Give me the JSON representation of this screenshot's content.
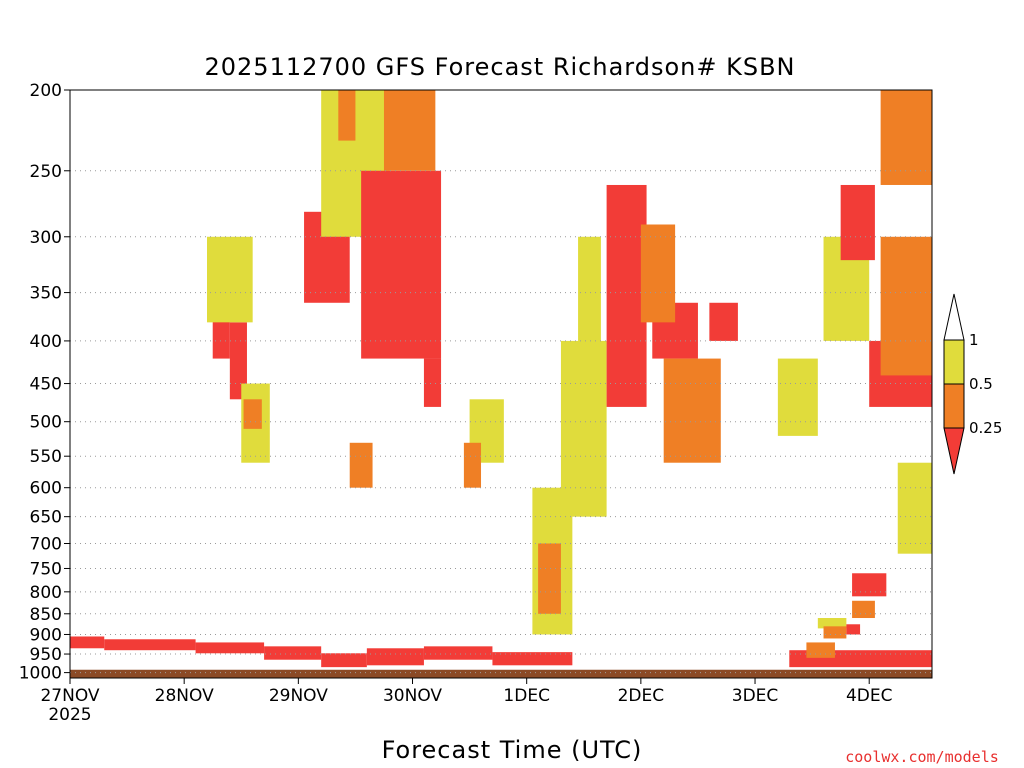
{
  "chart_data": {
    "type": "heatmap",
    "title": "2025112700 GFS Forecast Richardson# KSBN",
    "xlabel": "Forecast Time (UTC)",
    "ylabel": "",
    "x_ticks": [
      "27NOV",
      "28NOV",
      "29NOV",
      "30NOV",
      "1DEC",
      "2DEC",
      "3DEC",
      "4DEC"
    ],
    "x_tick_year": "2025",
    "x_range_days": [
      0,
      7.55
    ],
    "y_ticks": [
      200,
      250,
      300,
      350,
      400,
      450,
      500,
      550,
      600,
      650,
      700,
      750,
      800,
      850,
      900,
      950,
      1000
    ],
    "y_range_hpa": [
      200,
      1015
    ],
    "y_scale": "log-pressure",
    "grid": "dotted horizontal at pressure ticks",
    "surface_top_hpa": 990,
    "colorbar": {
      "ticks": [
        "1",
        "0.5",
        "0.25"
      ],
      "bins": [
        {
          "range": "0.5 - 1",
          "color": "#e0dc3c"
        },
        {
          "range": "0.25 - 0.5",
          "color": "#ef7f25"
        },
        {
          "range": "< 0.25",
          "color": "#f23c37"
        }
      ],
      "over_color": "#ffffff",
      "under_color": "#f23c37"
    },
    "colors": {
      "yellow": "#e0dc3c",
      "orange": "#ef7f25",
      "red": "#f23c37",
      "ground": "#8b4a26",
      "grid": "#9a9a9a"
    },
    "regions": [
      {
        "d": [
          0.0,
          0.3
        ],
        "p": [
          905,
          935
        ],
        "c": "r"
      },
      {
        "d": [
          0.3,
          1.1
        ],
        "p": [
          912,
          940
        ],
        "c": "r"
      },
      {
        "d": [
          1.1,
          1.7
        ],
        "p": [
          920,
          948
        ],
        "c": "r"
      },
      {
        "d": [
          1.7,
          2.2
        ],
        "p": [
          930,
          965
        ],
        "c": "r"
      },
      {
        "d": [
          2.2,
          2.6
        ],
        "p": [
          948,
          985
        ],
        "c": "r"
      },
      {
        "d": [
          2.6,
          3.1
        ],
        "p": [
          935,
          980
        ],
        "c": "r"
      },
      {
        "d": [
          3.1,
          3.7
        ],
        "p": [
          930,
          965
        ],
        "c": "r"
      },
      {
        "d": [
          3.7,
          4.4
        ],
        "p": [
          945,
          980
        ],
        "c": "r"
      },
      {
        "d": [
          6.3,
          7.55
        ],
        "p": [
          940,
          985
        ],
        "c": "r"
      },
      {
        "d": [
          6.55,
          6.8
        ],
        "p": [
          860,
          885
        ],
        "c": "y"
      },
      {
        "d": [
          6.8,
          6.92
        ],
        "p": [
          875,
          900
        ],
        "c": "r"
      },
      {
        "d": [
          1.25,
          1.4
        ],
        "p": [
          350,
          420
        ],
        "c": "r"
      },
      {
        "d": [
          1.4,
          1.55
        ],
        "p": [
          380,
          470
        ],
        "c": "r"
      },
      {
        "d": [
          1.2,
          1.6
        ],
        "p": [
          300,
          380
        ],
        "c": "y"
      },
      {
        "d": [
          1.5,
          1.75
        ],
        "p": [
          450,
          560
        ],
        "c": "y"
      },
      {
        "d": [
          1.52,
          1.68
        ],
        "p": [
          470,
          510
        ],
        "c": "o"
      },
      {
        "d": [
          2.05,
          2.45
        ],
        "p": [
          280,
          360
        ],
        "c": "r"
      },
      {
        "d": [
          2.2,
          2.8
        ],
        "p": [
          200,
          300
        ],
        "c": "y"
      },
      {
        "d": [
          2.35,
          2.5
        ],
        "p": [
          200,
          230
        ],
        "c": "o"
      },
      {
        "d": [
          2.45,
          2.65
        ],
        "p": [
          530,
          600
        ],
        "c": "o"
      },
      {
        "d": [
          2.55,
          3.25
        ],
        "p": [
          250,
          420
        ],
        "c": "r"
      },
      {
        "d": [
          2.75,
          3.2
        ],
        "p": [
          200,
          250
        ],
        "c": "o"
      },
      {
        "d": [
          3.1,
          3.25
        ],
        "p": [
          420,
          480
        ],
        "c": "r"
      },
      {
        "d": [
          3.5,
          3.8
        ],
        "p": [
          470,
          560
        ],
        "c": "y"
      },
      {
        "d": [
          3.45,
          3.6
        ],
        "p": [
          530,
          600
        ],
        "c": "o"
      },
      {
        "d": [
          4.05,
          4.4
        ],
        "p": [
          600,
          900
        ],
        "c": "y"
      },
      {
        "d": [
          4.1,
          4.3
        ],
        "p": [
          700,
          850
        ],
        "c": "o"
      },
      {
        "d": [
          4.3,
          4.7
        ],
        "p": [
          400,
          650
        ],
        "c": "y"
      },
      {
        "d": [
          4.45,
          4.65
        ],
        "p": [
          300,
          420
        ],
        "c": "y"
      },
      {
        "d": [
          4.7,
          5.05
        ],
        "p": [
          260,
          480
        ],
        "c": "r"
      },
      {
        "d": [
          5.1,
          5.5
        ],
        "p": [
          360,
          420
        ],
        "c": "r"
      },
      {
        "d": [
          5.2,
          5.7
        ],
        "p": [
          420,
          560
        ],
        "c": "o"
      },
      {
        "d": [
          5.0,
          5.3
        ],
        "p": [
          290,
          380
        ],
        "c": "o"
      },
      {
        "d": [
          5.6,
          5.85
        ],
        "p": [
          360,
          400
        ],
        "c": "r"
      },
      {
        "d": [
          6.45,
          6.7
        ],
        "p": [
          920,
          960
        ],
        "c": "o"
      },
      {
        "d": [
          6.6,
          6.8
        ],
        "p": [
          880,
          910
        ],
        "c": "o"
      },
      {
        "d": [
          6.2,
          6.55
        ],
        "p": [
          420,
          520
        ],
        "c": "y"
      },
      {
        "d": [
          6.6,
          7.0
        ],
        "p": [
          300,
          400
        ],
        "c": "y"
      },
      {
        "d": [
          6.75,
          7.05
        ],
        "p": [
          260,
          320
        ],
        "c": "r"
      },
      {
        "d": [
          7.0,
          7.55
        ],
        "p": [
          400,
          480
        ],
        "c": "r"
      },
      {
        "d": [
          7.1,
          7.55
        ],
        "p": [
          200,
          260
        ],
        "c": "o"
      },
      {
        "d": [
          7.1,
          7.55
        ],
        "p": [
          300,
          440
        ],
        "c": "o"
      },
      {
        "d": [
          6.85,
          7.15
        ],
        "p": [
          760,
          810
        ],
        "c": "r"
      },
      {
        "d": [
          6.85,
          7.05
        ],
        "p": [
          820,
          860
        ],
        "c": "o"
      },
      {
        "d": [
          7.25,
          7.55
        ],
        "p": [
          560,
          720
        ],
        "c": "y"
      }
    ]
  }
}
